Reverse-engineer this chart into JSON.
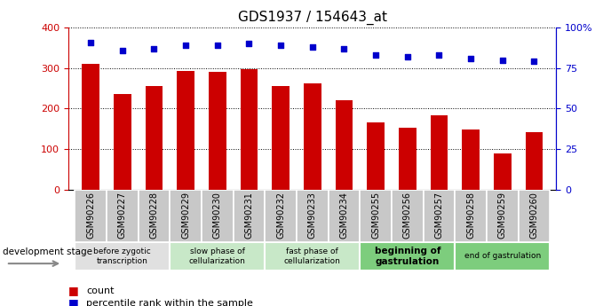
{
  "title": "GDS1937 / 154643_at",
  "samples": [
    "GSM90226",
    "GSM90227",
    "GSM90228",
    "GSM90229",
    "GSM90230",
    "GSM90231",
    "GSM90232",
    "GSM90233",
    "GSM90234",
    "GSM90255",
    "GSM90256",
    "GSM90257",
    "GSM90258",
    "GSM90259",
    "GSM90260"
  ],
  "counts": [
    310,
    237,
    256,
    293,
    291,
    298,
    256,
    263,
    221,
    167,
    152,
    184,
    148,
    90,
    143
  ],
  "percentiles": [
    91,
    86,
    87,
    89,
    89,
    90,
    89,
    88,
    87,
    83,
    82,
    83,
    81,
    80,
    79
  ],
  "bar_color": "#cc0000",
  "dot_color": "#0000cc",
  "ylim_left": [
    0,
    400
  ],
  "ylim_right": [
    0,
    100
  ],
  "yticks_left": [
    0,
    100,
    200,
    300,
    400
  ],
  "yticks_right": [
    0,
    25,
    50,
    75,
    100
  ],
  "ytick_labels_right": [
    "0",
    "25",
    "50",
    "75",
    "100%"
  ],
  "stage_groups": [
    {
      "label": "before zygotic\ntranscription",
      "samples": [
        "GSM90226",
        "GSM90227",
        "GSM90228"
      ],
      "color": "#e0e0e0"
    },
    {
      "label": "slow phase of\ncellularization",
      "samples": [
        "GSM90229",
        "GSM90230",
        "GSM90231"
      ],
      "color": "#c8e8c8"
    },
    {
      "label": "fast phase of\ncellularization",
      "samples": [
        "GSM90232",
        "GSM90233",
        "GSM90234"
      ],
      "color": "#c8e8c8"
    },
    {
      "label": "beginning of\ngastrulation",
      "samples": [
        "GSM90255",
        "GSM90256",
        "GSM90257"
      ],
      "color": "#7dcd7d"
    },
    {
      "label": "end of gastrulation",
      "samples": [
        "GSM90258",
        "GSM90259",
        "GSM90260"
      ],
      "color": "#7dcd7d"
    }
  ],
  "legend_count_color": "#cc0000",
  "legend_pct_color": "#0000cc",
  "dev_stage_label": "development stage",
  "background_color": "#ffffff",
  "tick_color_left": "#cc0000",
  "tick_color_right": "#0000cc",
  "bar_width": 0.55,
  "figsize": [
    6.7,
    3.45
  ],
  "dpi": 100,
  "tick_box_color": "#c8c8c8"
}
